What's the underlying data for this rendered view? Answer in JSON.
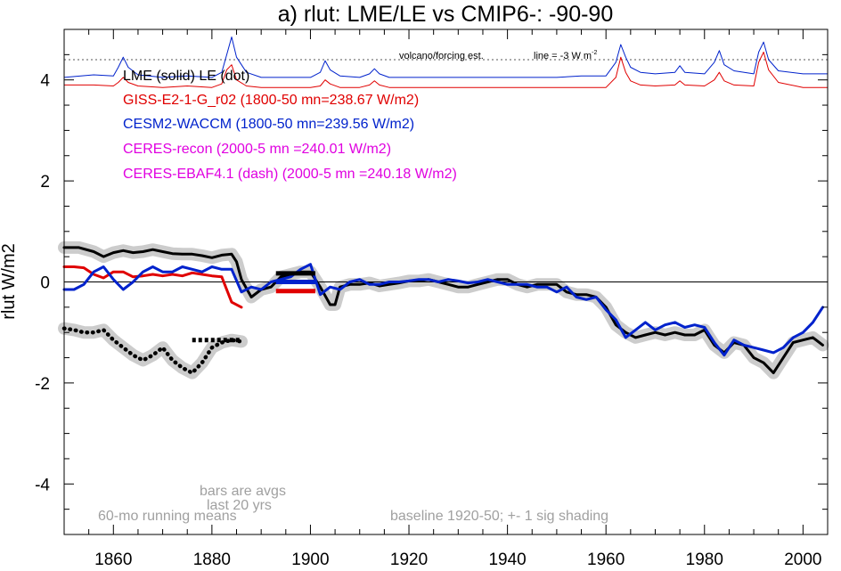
{
  "chart_data": {
    "type": "line",
    "title": "a) rlut: LME/LE vs CMIP6-: -90-90",
    "ylabel": "rlut W/m2",
    "xlabel": "",
    "xlim": [
      1850,
      2005
    ],
    "ylim": [
      -5,
      5
    ],
    "xticks": [
      1860,
      1880,
      1900,
      1920,
      1940,
      1960,
      1980,
      2000
    ],
    "yticks": [
      -4,
      -2,
      0,
      2,
      4
    ],
    "zero_line": 0,
    "legend": [
      {
        "text": "LME (solid)   LE (dot)",
        "color": "#000000"
      },
      {
        "text": "GISS-E2-1-G_r02 (1800-50 mn=238.67 W/m2)",
        "color": "#e00000"
      },
      {
        "text": "CESM2-WACCM (1800-50 mn=239.56 W/m2)",
        "color": "#0022cc"
      },
      {
        "text": "CERES-recon (2000-5 mn =240.01 W/m2)",
        "color": "#e000e0"
      },
      {
        "text": "CERES-EBAF4.1 (dash) (2000-5 mn =240.18 W/m2)",
        "color": "#e000e0"
      }
    ],
    "forcing_note": "volcano/forcing est.",
    "forcing_line_note": "line = -3 W m",
    "forcing_line_note_sup": "-2",
    "forcing_reference_y": 4.4,
    "notes": {
      "running_means": "60-mo running means",
      "bars_line1": "bars are avgs",
      "bars_line2": "last 20 yrs",
      "baseline": "baseline 1920-50; +- 1 sig shading"
    },
    "series": [
      {
        "name": "LME (solid)",
        "color": "#000000",
        "style": "solid",
        "shading": true,
        "x": [
          1850,
          1853,
          1856,
          1858,
          1860,
          1862,
          1864,
          1866,
          1868,
          1870,
          1872,
          1874,
          1876,
          1878,
          1880,
          1882,
          1884,
          1885,
          1886,
          1888,
          1890,
          1892,
          1894,
          1896,
          1898,
          1900,
          1902,
          1904,
          1905,
          1906,
          1908,
          1910,
          1912,
          1914,
          1916,
          1918,
          1920,
          1922,
          1924,
          1926,
          1928,
          1930,
          1932,
          1934,
          1936,
          1938,
          1940,
          1942,
          1944,
          1946,
          1948,
          1950,
          1952,
          1954,
          1956,
          1958,
          1960,
          1962,
          1964,
          1966,
          1968,
          1970,
          1972,
          1974,
          1976,
          1978,
          1980,
          1982,
          1984,
          1986,
          1988,
          1990,
          1992,
          1994,
          1996,
          1998,
          2000,
          2002,
          2004
        ],
        "y": [
          0.68,
          0.68,
          0.6,
          0.5,
          0.58,
          0.62,
          0.58,
          0.6,
          0.64,
          0.6,
          0.56,
          0.55,
          0.55,
          0.52,
          0.48,
          0.53,
          0.55,
          0.4,
          0.05,
          -0.3,
          -0.15,
          -0.1,
          0.1,
          0.15,
          0.2,
          0.2,
          -0.1,
          -0.45,
          -0.45,
          -0.1,
          -0.05,
          -0.05,
          -0.02,
          -0.08,
          -0.05,
          -0.02,
          0.02,
          0.02,
          0.05,
          0.0,
          -0.05,
          -0.1,
          -0.1,
          -0.05,
          0.0,
          0.05,
          0.05,
          -0.05,
          -0.1,
          -0.05,
          -0.05,
          -0.05,
          -0.2,
          -0.25,
          -0.25,
          -0.3,
          -0.5,
          -0.85,
          -1.0,
          -1.1,
          -1.05,
          -1.0,
          -1.05,
          -1.0,
          -1.05,
          -1.05,
          -0.95,
          -1.25,
          -1.4,
          -1.2,
          -1.25,
          -1.5,
          -1.6,
          -1.8,
          -1.5,
          -1.2,
          -1.15,
          -1.1,
          -1.25
        ]
      },
      {
        "name": "LE (dot)",
        "color": "#000000",
        "style": "dot",
        "shading": true,
        "x": [
          1850,
          1852,
          1854,
          1856,
          1858,
          1860,
          1862,
          1864,
          1866,
          1868,
          1870,
          1872,
          1874,
          1876,
          1878,
          1880,
          1882,
          1884,
          1886
        ],
        "y": [
          -0.92,
          -0.95,
          -1.0,
          -1.0,
          -0.95,
          -1.15,
          -1.3,
          -1.45,
          -1.55,
          -1.45,
          -1.3,
          -1.55,
          -1.7,
          -1.8,
          -1.6,
          -1.3,
          -1.2,
          -1.15,
          -1.18
        ]
      },
      {
        "name": "GISS-E2-1-G_r02",
        "color": "#e00000",
        "style": "solid",
        "shading": false,
        "x": [
          1850,
          1852,
          1854,
          1856,
          1858,
          1860,
          1862,
          1864,
          1866,
          1868,
          1870,
          1872,
          1874,
          1876,
          1878,
          1880,
          1882,
          1884,
          1886
        ],
        "y": [
          0.3,
          0.3,
          0.28,
          0.15,
          0.08,
          0.2,
          0.2,
          0.1,
          0.12,
          0.15,
          0.12,
          0.15,
          0.12,
          0.18,
          0.15,
          0.12,
          0.1,
          -0.4,
          -0.5
        ]
      },
      {
        "name": "CESM2-WACCM",
        "color": "#0022cc",
        "style": "solid",
        "shading": false,
        "x": [
          1850,
          1852,
          1854,
          1856,
          1858,
          1860,
          1862,
          1864,
          1866,
          1868,
          1870,
          1872,
          1874,
          1876,
          1878,
          1880,
          1882,
          1884,
          1886,
          1888,
          1890,
          1892,
          1894,
          1896,
          1898,
          1900,
          1902,
          1904,
          1906,
          1908,
          1910,
          1912,
          1914,
          1916,
          1918,
          1920,
          1922,
          1924,
          1926,
          1928,
          1930,
          1932,
          1934,
          1936,
          1938,
          1940,
          1942,
          1944,
          1946,
          1948,
          1950,
          1952,
          1954,
          1956,
          1958,
          1960,
          1962,
          1964,
          1966,
          1968,
          1970,
          1972,
          1974,
          1976,
          1978,
          1980,
          1982,
          1984,
          1986,
          1988,
          1990,
          1992,
          1994,
          1996,
          1998,
          2000,
          2002,
          2004
        ],
        "y": [
          -0.15,
          -0.15,
          -0.05,
          0.2,
          0.3,
          0.05,
          -0.15,
          0.0,
          0.2,
          0.3,
          0.2,
          0.2,
          0.3,
          0.25,
          0.2,
          0.3,
          0.25,
          0.25,
          -0.2,
          -0.1,
          -0.15,
          0.0,
          0.05,
          0.1,
          0.25,
          0.35,
          -0.25,
          -0.1,
          -0.15,
          0.0,
          0.05,
          -0.05,
          -0.05,
          0.0,
          0.0,
          0.02,
          0.05,
          0.05,
          0.0,
          0.05,
          0.02,
          -0.02,
          0.0,
          0.05,
          0.0,
          -0.05,
          -0.05,
          -0.05,
          -0.1,
          -0.1,
          -0.2,
          -0.1,
          -0.3,
          -0.35,
          -0.3,
          -0.55,
          -0.75,
          -1.1,
          -0.95,
          -0.8,
          -0.95,
          -0.85,
          -0.8,
          -0.9,
          -0.85,
          -0.9,
          -1.2,
          -1.45,
          -1.15,
          -1.25,
          -1.3,
          -1.35,
          -1.4,
          -1.3,
          -1.1,
          -1.0,
          -0.8,
          -0.5
        ]
      },
      {
        "name": "CESM2-WACCM volcano/forcing est.",
        "color": "#0022cc",
        "style": "solid",
        "shading": false,
        "x": [
          1850,
          1856,
          1860,
          1861,
          1862,
          1863,
          1865,
          1870,
          1875,
          1880,
          1882,
          1883,
          1884,
          1885,
          1887,
          1890,
          1895,
          1900,
          1902,
          1903,
          1904,
          1906,
          1910,
          1912,
          1913,
          1914,
          1916,
          1920,
          1930,
          1940,
          1950,
          1955,
          1960,
          1962,
          1963,
          1964,
          1965,
          1967,
          1970,
          1974,
          1975,
          1976,
          1980,
          1982,
          1983,
          1984,
          1986,
          1990,
          1991,
          1992,
          1993,
          1995,
          2000,
          2005
        ],
        "y": [
          4.05,
          4.1,
          4.08,
          4.25,
          4.45,
          4.25,
          4.1,
          4.05,
          4.08,
          4.05,
          4.15,
          4.5,
          4.85,
          4.45,
          4.15,
          4.05,
          4.05,
          4.05,
          4.15,
          4.38,
          4.2,
          4.08,
          4.05,
          4.12,
          4.22,
          4.12,
          4.05,
          4.05,
          4.05,
          4.05,
          4.05,
          4.08,
          4.08,
          4.35,
          4.7,
          4.45,
          4.25,
          4.15,
          4.12,
          4.15,
          4.28,
          4.15,
          4.12,
          4.35,
          4.58,
          4.3,
          4.18,
          4.12,
          4.55,
          4.75,
          4.4,
          4.18,
          4.12,
          4.12
        ]
      },
      {
        "name": "GISS-E2-1-G_r02 volcano/forcing est.",
        "color": "#e00000",
        "style": "solid",
        "shading": false,
        "x": [
          1850,
          1856,
          1860,
          1861,
          1862,
          1863,
          1865,
          1870,
          1875,
          1880,
          1882,
          1883,
          1884,
          1885,
          1887,
          1890,
          1895,
          1900,
          1902,
          1903,
          1904,
          1906,
          1910,
          1912,
          1913,
          1914,
          1916,
          1920,
          1930,
          1940,
          1950,
          1955,
          1960,
          1962,
          1963,
          1964,
          1965,
          1967,
          1970,
          1974,
          1975,
          1976,
          1980,
          1982,
          1983,
          1984,
          1986,
          1990,
          1991,
          1992,
          1993,
          1995,
          2000,
          2005
        ],
        "y": [
          3.9,
          3.9,
          3.88,
          3.95,
          4.05,
          3.95,
          3.88,
          3.85,
          3.88,
          3.85,
          3.92,
          4.2,
          4.3,
          4.0,
          3.88,
          3.85,
          3.85,
          3.85,
          3.88,
          4.0,
          3.92,
          3.85,
          3.85,
          3.9,
          3.98,
          3.9,
          3.85,
          3.85,
          3.85,
          3.85,
          3.85,
          3.85,
          3.85,
          4.05,
          4.45,
          4.15,
          3.98,
          3.9,
          3.88,
          3.9,
          3.98,
          3.9,
          3.88,
          4.0,
          4.15,
          3.98,
          3.9,
          3.88,
          4.35,
          4.55,
          4.2,
          3.95,
          3.85,
          3.85
        ]
      }
    ],
    "bars": [
      {
        "name": "CESM2-WACCM last 20 yrs avg",
        "color": "#0022cc",
        "x0": 1893,
        "x1": 1901,
        "y": 0.0
      },
      {
        "name": "GISS-E2-1-G_r02 last 20 yrs avg",
        "color": "#e00000",
        "x0": 1893,
        "x1": 1901,
        "y": -0.18
      },
      {
        "name": "LME last 20 yrs avg",
        "color": "#000000",
        "x0": 1893,
        "x1": 1901,
        "y": 0.17
      },
      {
        "name": "LE last 20 yrs avg",
        "color": "#000000",
        "style": "dash",
        "x0": 1876,
        "x1": 1886,
        "y": -1.15
      }
    ]
  }
}
